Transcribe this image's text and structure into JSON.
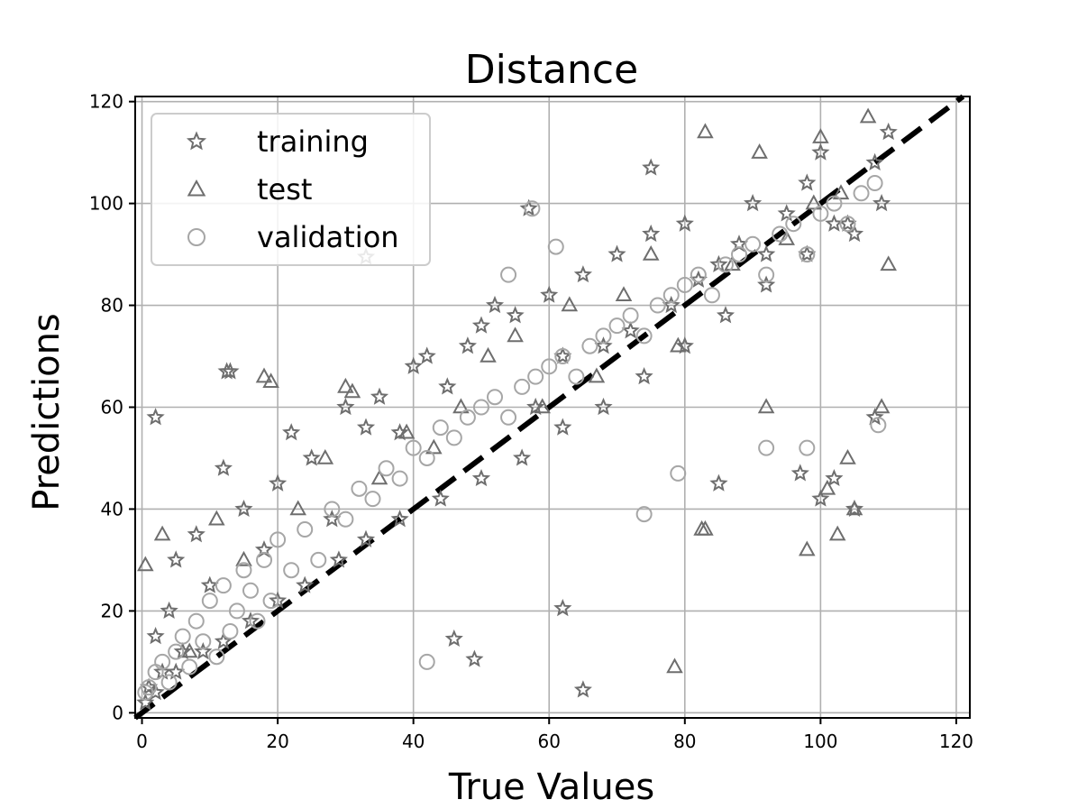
{
  "chart_data": {
    "type": "scatter",
    "title": "Distance",
    "xlabel": "True Values",
    "ylabel": "Predictions",
    "xlim": [
      -1,
      122
    ],
    "ylim": [
      -1,
      121
    ],
    "xticks": [
      0,
      20,
      40,
      60,
      80,
      100,
      120
    ],
    "yticks": [
      0,
      20,
      40,
      60,
      80,
      100,
      120
    ],
    "grid": true,
    "legend_position": "top-left",
    "reference_line": {
      "style": "dashed",
      "color": "#000000",
      "x": [
        -1,
        121
      ],
      "y": [
        -1,
        121
      ]
    },
    "series": [
      {
        "name": "training",
        "marker": "star",
        "color": "#6e6e6e",
        "x": [
          0.5,
          1,
          2,
          3,
          4,
          5,
          6,
          8,
          10,
          12,
          13,
          15,
          18,
          20,
          22,
          25,
          28,
          30,
          33,
          35,
          38,
          40,
          42,
          45,
          48,
          50,
          52,
          55,
          58,
          60,
          62,
          65,
          68,
          70,
          72,
          75,
          78,
          80,
          82,
          85,
          88,
          90,
          92,
          95,
          98,
          100,
          102,
          105,
          108,
          110,
          2,
          5,
          9,
          12,
          16,
          20,
          24,
          29,
          33,
          38,
          44,
          50,
          56,
          62,
          68,
          74,
          80,
          86,
          92,
          98,
          104,
          109,
          57,
          75,
          65,
          46,
          49,
          62,
          85,
          100,
          102,
          105,
          108,
          97,
          33,
          12.5,
          2
        ],
        "y": [
          2,
          5,
          15,
          8,
          20,
          30,
          12,
          35,
          25,
          48,
          67,
          40,
          32,
          45,
          55,
          50,
          38,
          60,
          56,
          62,
          55,
          68,
          70,
          64,
          72,
          76,
          80,
          78,
          60,
          82,
          70,
          86,
          72,
          90,
          75,
          94,
          80,
          96,
          85,
          88,
          92,
          100,
          90,
          98,
          104,
          110,
          96,
          94,
          108,
          114,
          4,
          8,
          12,
          14,
          18,
          22,
          25,
          30,
          34,
          38,
          42,
          46,
          50,
          56,
          60,
          66,
          72,
          78,
          84,
          90,
          96,
          100,
          99,
          107,
          4.5,
          14.5,
          10.5,
          20.5,
          45,
          42,
          46,
          40,
          58,
          47,
          89.5,
          67,
          58
        ]
      },
      {
        "name": "test",
        "marker": "triangle",
        "color": "#6e6e6e",
        "x": [
          0.5,
          3,
          7,
          11,
          15,
          19,
          23,
          27,
          31,
          35,
          39,
          43,
          47,
          51,
          55,
          59,
          63,
          67,
          71,
          75,
          79,
          83,
          87,
          91,
          95,
          99,
          103,
          107,
          110,
          18,
          30,
          83,
          78.5,
          82.5,
          98,
          101,
          102.5,
          105,
          104,
          109,
          92,
          100
        ],
        "y": [
          29,
          35,
          12,
          38,
          30,
          65,
          40,
          50,
          63,
          46,
          55,
          52,
          60,
          70,
          74,
          60,
          80,
          66,
          82,
          90,
          72,
          114,
          88,
          110,
          93,
          100,
          102,
          117,
          88,
          66,
          64,
          36,
          9,
          36,
          32,
          44,
          35,
          40,
          50,
          60,
          60,
          113
        ]
      },
      {
        "name": "validation",
        "marker": "circle",
        "color": "#a6a6a6",
        "x": [
          0.5,
          1,
          2,
          3,
          4,
          5,
          6,
          7,
          8,
          9,
          10,
          11,
          12,
          13,
          14,
          15,
          16,
          17,
          18,
          19,
          20,
          22,
          24,
          26,
          28,
          30,
          32,
          34,
          36,
          38,
          40,
          42,
          44,
          46,
          48,
          50,
          52,
          54,
          56,
          58,
          60,
          62,
          64,
          66,
          68,
          70,
          72,
          74,
          76,
          78,
          80,
          82,
          84,
          86,
          88,
          90,
          92,
          94,
          96,
          98,
          100,
          102,
          104,
          106,
          108,
          54,
          57.5,
          61,
          79,
          74,
          42,
          92,
          108.5,
          98
        ],
        "y": [
          4,
          5,
          8,
          10,
          6,
          12,
          15,
          9,
          18,
          14,
          22,
          11,
          25,
          16,
          20,
          28,
          24,
          18,
          30,
          22,
          34,
          28,
          36,
          30,
          40,
          38,
          44,
          42,
          48,
          46,
          52,
          50,
          56,
          54,
          58,
          60,
          62,
          58,
          64,
          66,
          68,
          70,
          66,
          72,
          74,
          76,
          78,
          74,
          80,
          82,
          84,
          86,
          82,
          88,
          90,
          92,
          86,
          94,
          96,
          90,
          98,
          100,
          96,
          102,
          104,
          86,
          99,
          91.5,
          47,
          39,
          10,
          52,
          56.5,
          52
        ]
      }
    ]
  }
}
